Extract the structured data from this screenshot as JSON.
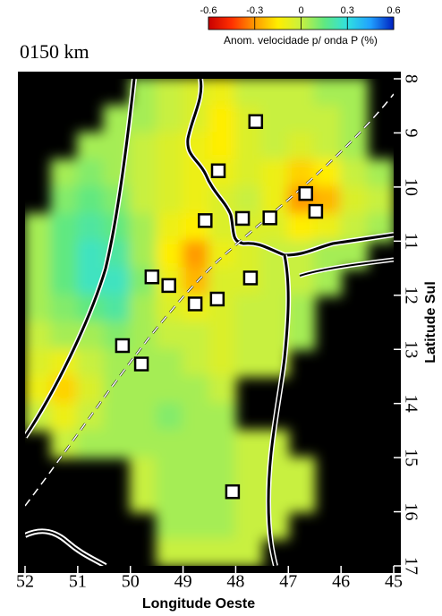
{
  "chart_data": {
    "type": "map",
    "title": "0150 km",
    "colorbar_label": "Anom. velocidade p/ onda P (%)",
    "clim": [
      -0.6,
      0.6
    ],
    "colorbar_ticks": [
      -0.6,
      -0.3,
      0,
      0.3,
      0.6
    ],
    "colorscale": [
      "#c80000",
      "#ff3000",
      "#ff9a00",
      "#ffee00",
      "#c8f040",
      "#60e880",
      "#30e0e0",
      "#20a0ff",
      "#0020c0"
    ],
    "xlabel": "Longitude Oeste",
    "ylabel": "Latitude Sul",
    "xlim": [
      52,
      45
    ],
    "xticks": [
      52,
      51,
      50,
      49,
      48,
      47,
      46,
      45
    ],
    "ylim": [
      8,
      17
    ],
    "yticks": [
      8,
      9,
      10,
      11,
      12,
      13,
      14,
      15,
      16,
      17
    ],
    "grid": {
      "lon": [
        51.75,
        51.25,
        50.75,
        50.25,
        49.75,
        49.25,
        48.75,
        48.25,
        47.75,
        47.25,
        46.75,
        46.25,
        45.75,
        45.25
      ],
      "lat": [
        8.25,
        8.75,
        9.25,
        9.75,
        10.25,
        10.75,
        11.25,
        11.75,
        12.25,
        12.75,
        13.25,
        13.75,
        14.25,
        14.75,
        15.25,
        15.75,
        16.25,
        16.75
      ],
      "values": [
        [
          null,
          null,
          null,
          null,
          0.05,
          0.0,
          -0.05,
          -0.1,
          0.0,
          0.0,
          0.0,
          0.05,
          0.05,
          null
        ],
        [
          null,
          null,
          null,
          0.05,
          0.05,
          0.0,
          -0.05,
          -0.15,
          -0.05,
          0.0,
          0.0,
          0.0,
          0.05,
          null
        ],
        [
          null,
          null,
          0.05,
          0.05,
          0.0,
          -0.05,
          -0.1,
          -0.15,
          -0.05,
          0.0,
          -0.05,
          0.0,
          0.05,
          null
        ],
        [
          null,
          0.05,
          0.1,
          0.05,
          0.0,
          -0.05,
          -0.1,
          -0.1,
          -0.05,
          -0.1,
          -0.2,
          -0.15,
          0.0,
          0.05
        ],
        [
          null,
          0.1,
          0.15,
          0.1,
          0.0,
          -0.05,
          -0.1,
          -0.05,
          0.0,
          -0.1,
          -0.3,
          -0.25,
          -0.05,
          0.0
        ],
        [
          0.05,
          0.15,
          0.2,
          0.15,
          0.05,
          -0.1,
          -0.15,
          -0.05,
          -0.05,
          -0.05,
          -0.15,
          -0.1,
          0.0,
          0.05
        ],
        [
          0.05,
          0.15,
          0.25,
          0.2,
          0.05,
          -0.15,
          -0.3,
          -0.1,
          -0.05,
          0.0,
          0.0,
          0.05,
          0.05,
          null
        ],
        [
          0.05,
          0.15,
          0.25,
          0.25,
          0.1,
          -0.1,
          -0.25,
          -0.05,
          -0.05,
          0.0,
          0.0,
          0.05,
          null,
          null
        ],
        [
          0.05,
          0.1,
          0.15,
          0.2,
          0.05,
          -0.05,
          -0.1,
          -0.05,
          0.0,
          0.0,
          0.05,
          null,
          null,
          null
        ],
        [
          0.0,
          0.05,
          0.05,
          0.1,
          0.05,
          0.0,
          0.0,
          -0.05,
          0.0,
          0.0,
          0.05,
          null,
          null,
          null
        ],
        [
          -0.05,
          -0.1,
          0.0,
          0.05,
          0.05,
          0.05,
          0.0,
          -0.05,
          0.0,
          0.0,
          null,
          null,
          null,
          null
        ],
        [
          -0.1,
          -0.2,
          -0.05,
          0.05,
          0.05,
          0.05,
          0.05,
          0.0,
          null,
          null,
          null,
          null,
          null,
          null
        ],
        [
          0.0,
          -0.1,
          0.0,
          0.05,
          0.05,
          0.1,
          0.05,
          0.05,
          null,
          null,
          null,
          null,
          null,
          null
        ],
        [
          null,
          0.0,
          0.05,
          0.05,
          0.05,
          0.05,
          0.05,
          0.05,
          0.0,
          0.0,
          null,
          null,
          null,
          null
        ],
        [
          null,
          null,
          null,
          null,
          0.0,
          0.05,
          0.05,
          0.05,
          0.0,
          0.0,
          0.0,
          null,
          null,
          null
        ],
        [
          null,
          null,
          null,
          null,
          0.0,
          0.05,
          0.05,
          0.05,
          0.0,
          0.0,
          0.0,
          null,
          null,
          null
        ],
        [
          null,
          null,
          null,
          null,
          null,
          0.05,
          0.05,
          0.05,
          0.0,
          0.0,
          null,
          null,
          null,
          null
        ],
        [
          null,
          null,
          null,
          null,
          null,
          0.0,
          0.0,
          0.0,
          0.0,
          null,
          null,
          null,
          null,
          null
        ]
      ]
    },
    "stations": {
      "lon": [
        47.62,
        48.33,
        48.58,
        47.87,
        47.35,
        46.67,
        46.48,
        49.59,
        49.27,
        47.72,
        48.35,
        48.77,
        50.15,
        49.79,
        48.06
      ],
      "lat": [
        8.79,
        9.7,
        10.62,
        10.58,
        10.57,
        10.12,
        10.45,
        11.66,
        11.82,
        11.68,
        12.07,
        12.16,
        12.93,
        13.27,
        15.63
      ]
    }
  }
}
